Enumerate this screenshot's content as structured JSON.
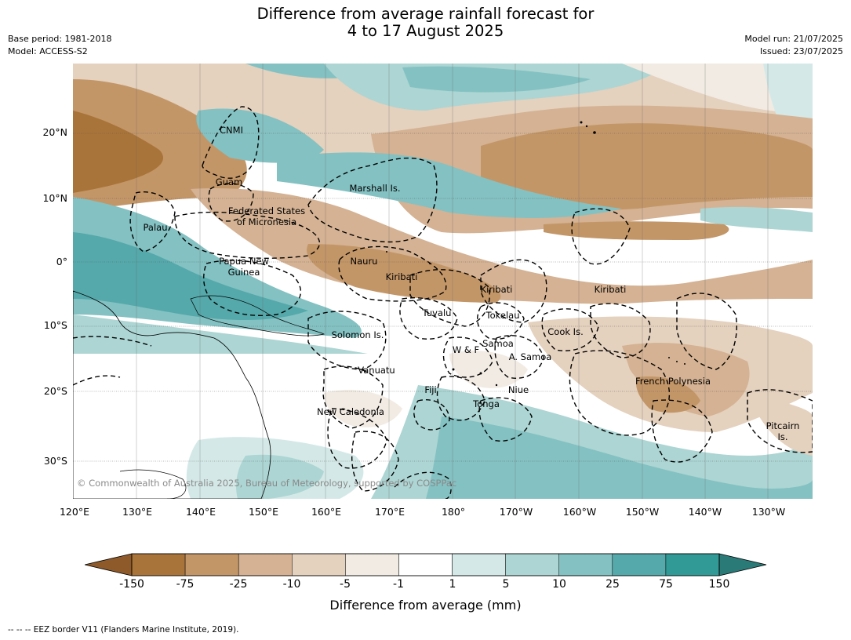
{
  "title_line1": "Difference from average rainfall forecast for",
  "title_line2": "4 to 17 August 2025",
  "base_period": "Base period: 1981-2018",
  "model": "Model: ACCESS-S2",
  "model_run": "Model run: 21/07/2025",
  "issued": "Issued: 23/07/2025",
  "lat_labels": [
    "20°N",
    "10°N",
    "0°",
    "10°S",
    "20°S",
    "30°S"
  ],
  "lon_labels": [
    "120°E",
    "130°E",
    "140°E",
    "150°E",
    "160°E",
    "170°E",
    "180°",
    "170°W",
    "160°W",
    "150°W",
    "140°W",
    "130°W"
  ],
  "places": {
    "cnmi": "CNMI",
    "guam": "Guam",
    "marshall": "Marshall Is.",
    "fsm_1": "Federated States",
    "fsm_2": "of Micronesia",
    "palau": "Palau",
    "png_1": "Papua New",
    "png_2": "Guinea",
    "nauru": "Nauru",
    "kiribati_w": "Kiribati",
    "kiribati_c": "Kiribati",
    "kiribati_e": "Kiribati",
    "tuvalu": "Tuvalu",
    "tokelau": "Tokelau",
    "cook": "Cook Is.",
    "solomon": "Solomon Is.",
    "wf": "W & F",
    "samoa": "Samoa",
    "asamoa": "A. Samoa",
    "vanuatu": "Vanuatu",
    "fiji": "Fiji",
    "niue": "Niue",
    "tonga": "Tonga",
    "french_polynesia": "French Polynesia",
    "new_caledonia": "New Caledonia",
    "pitcairn_1": "Pitcairn",
    "pitcairn_2": "Is."
  },
  "copyright": "© Commonwealth of Australia 2025, Bureau of Meteorology, supported by COSPPac",
  "colorbar": {
    "ticks": [
      "-150",
      "-75",
      "-25",
      "-10",
      "-5",
      "-1",
      "1",
      "5",
      "10",
      "25",
      "75",
      "150"
    ],
    "colors": [
      "#a97439",
      "#c39668",
      "#d4b293",
      "#e4d1be",
      "#f2ebe3",
      "#ffffff",
      "#d4e9e7",
      "#acd5d3",
      "#84c1c2",
      "#55a9ab",
      "#319996"
    ],
    "low_extend_color": "#8e5a2a",
    "high_extend_color": "#2a7a78",
    "title": "Difference from average (mm)"
  },
  "footer": "--  --  -- EEZ border V11 (Flanders Marine Institute, 2019)."
}
